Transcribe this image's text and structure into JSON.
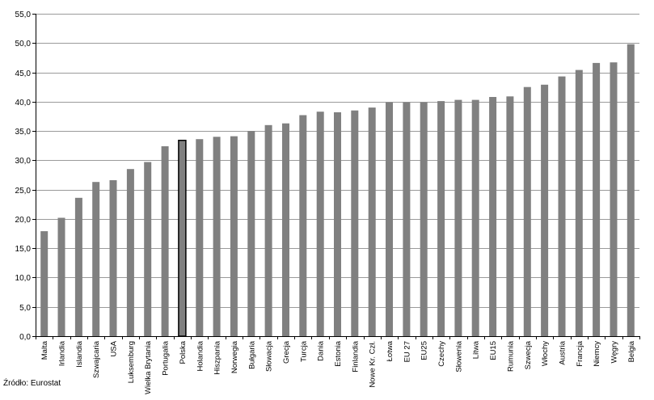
{
  "chart_data": {
    "type": "bar",
    "categories": [
      "Malta",
      "Irlandia",
      "Islandia",
      "Szwajcaria",
      "USA",
      "Luksemburg",
      "Wielka Brytania",
      "Portugalia",
      "Polska",
      "Holandia",
      "Hiszpania",
      "Norwegia",
      "Bułgaria",
      "Słowacja",
      "Grecja",
      "Turcja",
      "Dania",
      "Estonia",
      "Finlandia",
      "Nowe Kr. Czł.",
      "Łotwa",
      "EU 27",
      "EU25",
      "Czechy",
      "Słowenia",
      "Litwa",
      "EU15",
      "Rumunia",
      "Szwecja",
      "Włochy",
      "Austria",
      "Francja",
      "Niemcy",
      "Węgry",
      "Belgia"
    ],
    "values": [
      17.9,
      20.2,
      23.6,
      26.3,
      26.6,
      28.5,
      29.7,
      32.4,
      33.4,
      33.6,
      34.0,
      34.1,
      35.0,
      36.0,
      36.3,
      37.7,
      38.3,
      38.2,
      38.5,
      39.0,
      39.9,
      39.9,
      39.9,
      40.1,
      40.3,
      40.3,
      40.8,
      40.9,
      42.5,
      42.9,
      44.3,
      45.4,
      46.6,
      46.7,
      49.8
    ],
    "highlight": "Polska",
    "ylim": [
      0,
      55
    ],
    "yticks": [
      "0,0",
      "5,0",
      "10,0",
      "15,0",
      "20,0",
      "25,0",
      "30,0",
      "35,0",
      "40,0",
      "45,0",
      "50,0",
      "55,0"
    ],
    "grid": true,
    "colors": {
      "bar": "#808080",
      "highlight_border": "#000000",
      "grid": "#9a9a9a",
      "axis": "#000000"
    },
    "title": "",
    "xlabel": "",
    "ylabel": ""
  },
  "source": "Źródło: Eurostat"
}
